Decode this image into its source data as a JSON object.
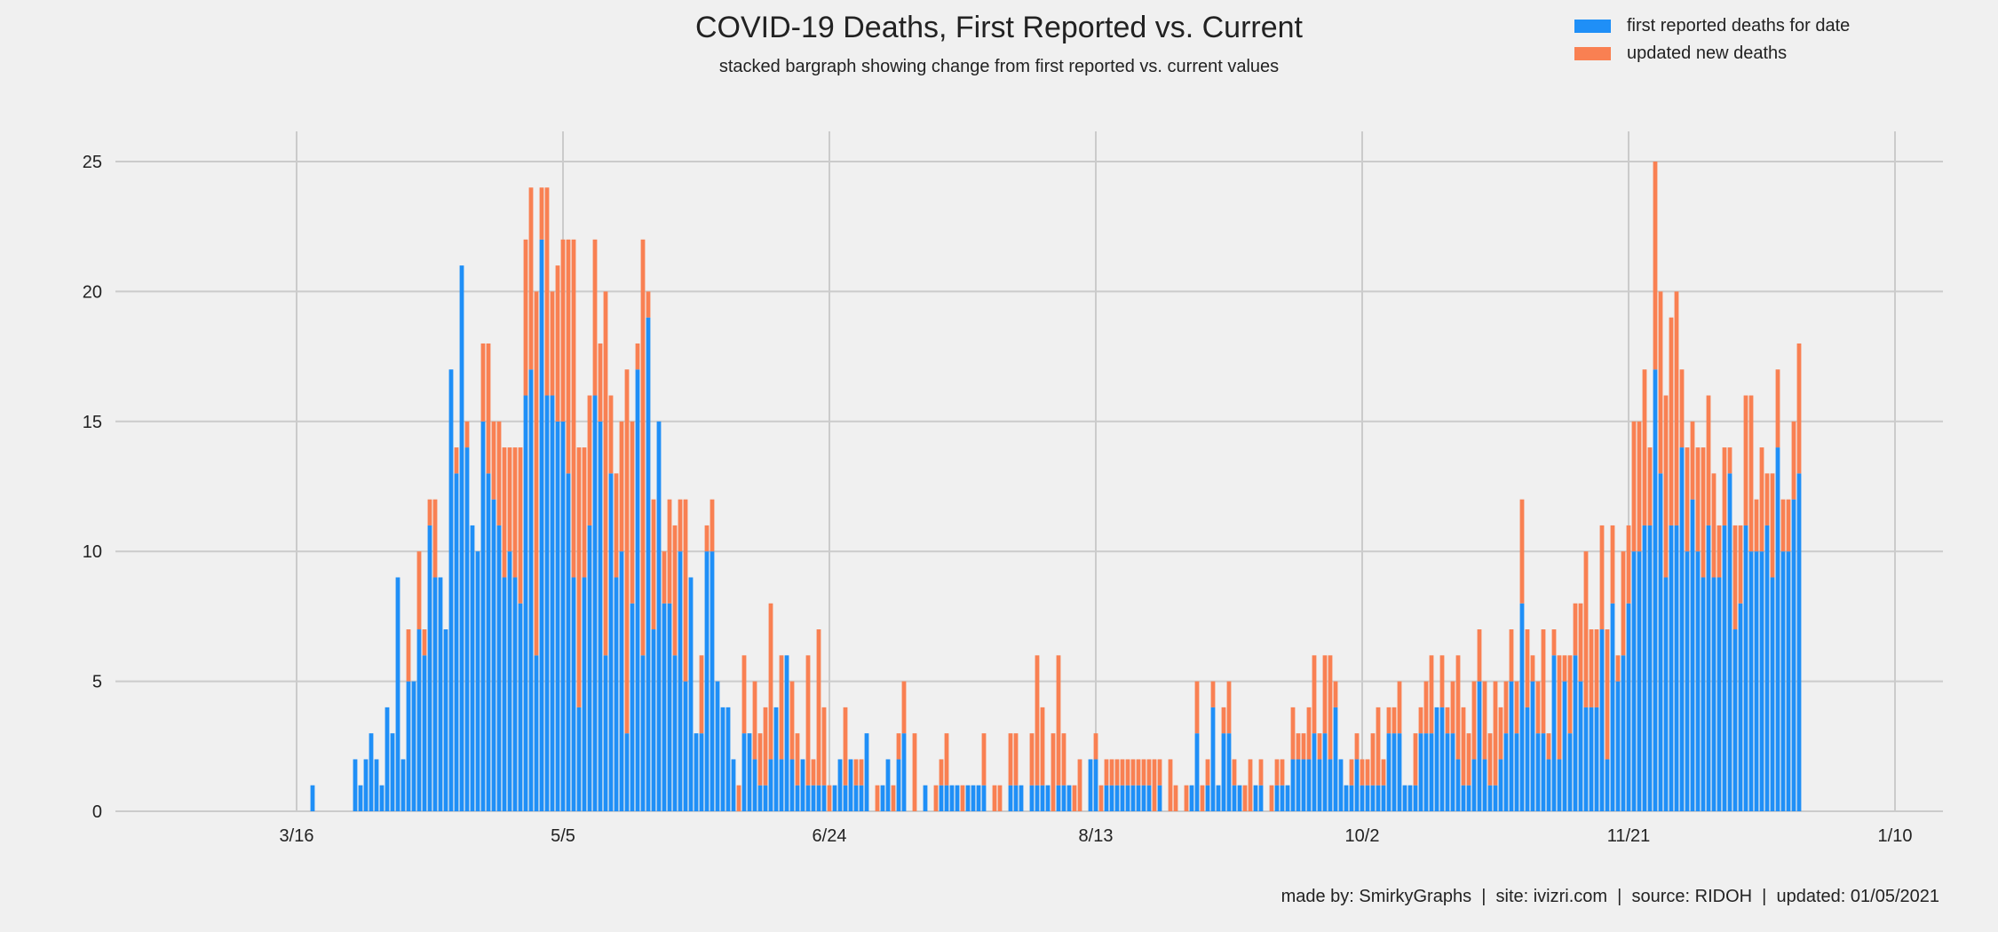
{
  "chart_data": {
    "type": "bar",
    "stacked": true,
    "title": "COVID-19 Deaths, First Reported vs. Current",
    "subtitle": "stacked bargraph showing change from first reported vs. current values",
    "x_ticks": [
      "3/16",
      "5/5",
      "6/24",
      "8/13",
      "10/2",
      "11/21",
      "1/10"
    ],
    "ylim": [
      0,
      26
    ],
    "y_ticks": [
      0,
      5,
      10,
      15,
      20,
      25
    ],
    "grid": true,
    "legend_placement": "top-right",
    "series": [
      {
        "name": "first reported deaths for date",
        "color": "#1f8ff7",
        "values": [
          1,
          0,
          0,
          0,
          0,
          0,
          0,
          0,
          2,
          1,
          2,
          3,
          2,
          1,
          4,
          3,
          9,
          2,
          5,
          5,
          7,
          6,
          11,
          9,
          9,
          7,
          17,
          13,
          21,
          14,
          11,
          10,
          15,
          13,
          12,
          11,
          9,
          10,
          9,
          8,
          16,
          17,
          6,
          22,
          16,
          16,
          15,
          15,
          13,
          9,
          4,
          9,
          11,
          16,
          15,
          6,
          13,
          9,
          10,
          3,
          8,
          17,
          6,
          19,
          7,
          15,
          8,
          8,
          6,
          10,
          5,
          9,
          3,
          3,
          10,
          10,
          5,
          4,
          4,
          2,
          0,
          3,
          3,
          2,
          1,
          1,
          2,
          4,
          2,
          6,
          2,
          1,
          2,
          1,
          1,
          1,
          1,
          0,
          1,
          2,
          1,
          2,
          1,
          1,
          3,
          0,
          0,
          1,
          2,
          0,
          2,
          3,
          0,
          0,
          0,
          1,
          0,
          0,
          1,
          1,
          1,
          1,
          0,
          1,
          1,
          1,
          1,
          0,
          0,
          0,
          0,
          1,
          1,
          1,
          0,
          1,
          1,
          1,
          1,
          0,
          1,
          1,
          1,
          0,
          0,
          0,
          2,
          2,
          0,
          1,
          1,
          1,
          1,
          1,
          1,
          1,
          1,
          1,
          0,
          1,
          0,
          0,
          0,
          0,
          0,
          1,
          3,
          0,
          1,
          4,
          1,
          3,
          3,
          1,
          1,
          0,
          0,
          1,
          1,
          0,
          0,
          1,
          1,
          1,
          2,
          2,
          2,
          2,
          3,
          2,
          3,
          2,
          4,
          2,
          1,
          1,
          2,
          1,
          1,
          1,
          1,
          1,
          3,
          3,
          3,
          1,
          1,
          1,
          3,
          3,
          3,
          4,
          4,
          3,
          3,
          2,
          1,
          1,
          2,
          5,
          2,
          1,
          1,
          2,
          3,
          5,
          3,
          8,
          4,
          5,
          3,
          3,
          2,
          6,
          2,
          5,
          3,
          6,
          5,
          4,
          4,
          4,
          7,
          2,
          8,
          5,
          6,
          8,
          10,
          10,
          11,
          11,
          17,
          13,
          9,
          11,
          11,
          14,
          10,
          12,
          10,
          9,
          11,
          9,
          9,
          11,
          13,
          7,
          8,
          11,
          10,
          10,
          10,
          11,
          9,
          14,
          10,
          10,
          12,
          13
        ]
      },
      {
        "name": "updated new deaths",
        "color": "#f98052",
        "values": [
          0,
          0,
          0,
          0,
          0,
          0,
          0,
          0,
          0,
          0,
          0,
          0,
          0,
          0,
          0,
          0,
          0,
          0,
          2,
          0,
          3,
          1,
          1,
          3,
          0,
          0,
          0,
          1,
          0,
          1,
          0,
          0,
          3,
          5,
          3,
          4,
          5,
          4,
          5,
          6,
          6,
          7,
          14,
          2,
          8,
          4,
          6,
          7,
          9,
          13,
          10,
          5,
          5,
          6,
          3,
          14,
          3,
          4,
          5,
          14,
          7,
          1,
          16,
          1,
          5,
          0,
          2,
          4,
          5,
          2,
          7,
          0,
          0,
          3,
          1,
          2,
          0,
          0,
          0,
          0,
          1,
          3,
          0,
          3,
          2,
          3,
          6,
          0,
          4,
          0,
          3,
          2,
          0,
          5,
          1,
          6,
          3,
          1,
          0,
          0,
          3,
          0,
          1,
          1,
          0,
          0,
          1,
          0,
          0,
          1,
          1,
          2,
          0,
          3,
          0,
          0,
          0,
          1,
          1,
          2,
          0,
          0,
          1,
          0,
          0,
          0,
          2,
          0,
          1,
          1,
          0,
          2,
          2,
          0,
          0,
          2,
          5,
          3,
          0,
          3,
          5,
          2,
          0,
          1,
          2,
          0,
          0,
          1,
          1,
          1,
          1,
          1,
          1,
          1,
          1,
          1,
          1,
          1,
          2,
          1,
          0,
          2,
          1,
          0,
          1,
          0,
          2,
          1,
          1,
          1,
          0,
          1,
          2,
          1,
          0,
          1,
          2,
          0,
          1,
          0,
          1,
          1,
          1,
          0,
          2,
          1,
          1,
          2,
          3,
          1,
          3,
          4,
          1,
          0,
          0,
          1,
          1,
          1,
          1,
          2,
          3,
          1,
          1,
          1,
          2,
          0,
          0,
          2,
          1,
          2,
          3,
          0,
          2,
          1,
          2,
          4,
          3,
          2,
          3,
          2,
          3,
          2,
          4,
          2,
          2,
          2,
          2,
          4,
          3,
          1,
          2,
          4,
          1,
          1,
          4,
          1,
          3,
          2,
          3,
          6,
          3,
          3,
          4,
          5,
          3,
          1,
          4,
          3,
          5,
          5,
          6,
          3,
          8,
          7,
          7,
          8,
          9,
          3,
          4,
          3,
          4,
          5,
          5,
          4,
          2,
          3,
          1,
          4,
          3,
          5,
          6,
          2,
          4,
          2,
          4,
          3,
          2,
          2,
          3,
          5,
          1,
          0
        ]
      }
    ]
  },
  "footer": "made by: SmirkyGraphs  |  site: ivizri.com  |  source: RIDOH  |  updated: 01/05/2021"
}
